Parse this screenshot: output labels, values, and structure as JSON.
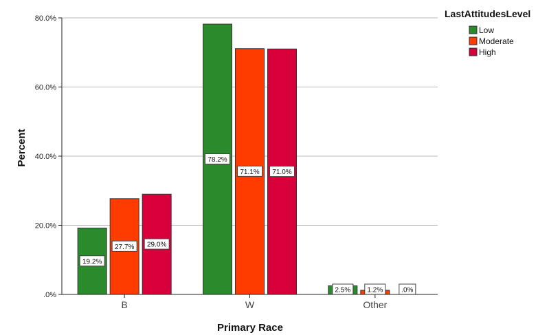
{
  "chart_data": {
    "type": "bar",
    "categories": [
      "B",
      "W",
      "Other"
    ],
    "series": [
      {
        "name": "Low",
        "color": "#2b8a2b",
        "values": [
          19.2,
          78.2,
          2.5
        ],
        "labels": [
          "19.2%",
          "78.2%",
          "2.5%"
        ]
      },
      {
        "name": "Moderate",
        "color": "#ff3c00",
        "values": [
          27.7,
          71.1,
          1.2
        ],
        "labels": [
          "27.7%",
          "71.1%",
          "1.2%"
        ]
      },
      {
        "name": "High",
        "color": "#d8003a",
        "values": [
          29.0,
          71.0,
          0.0
        ],
        "labels": [
          "29.0%",
          "71.0%",
          ".0%"
        ]
      }
    ],
    "xlabel": "Primary Race",
    "ylabel": "Percent",
    "ylim": [
      0,
      80
    ],
    "yticks": [
      0,
      20,
      40,
      60,
      80
    ],
    "ytick_labels": [
      ".0%",
      "20.0%",
      "40.0%",
      "60.0%",
      "80.0%"
    ],
    "grid": true,
    "legend_title": "LastAttitudesLevel",
    "legend_position": "top-right"
  }
}
